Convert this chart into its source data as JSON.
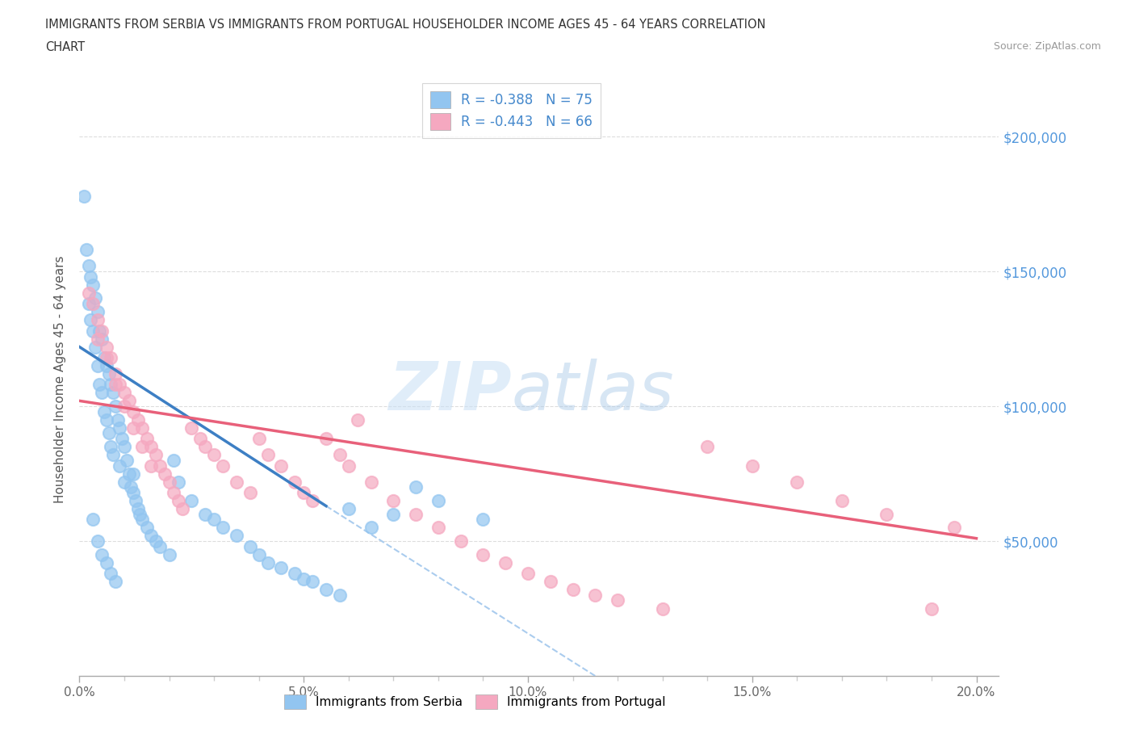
{
  "title_line1": "IMMIGRANTS FROM SERBIA VS IMMIGRANTS FROM PORTUGAL HOUSEHOLDER INCOME AGES 45 - 64 YEARS CORRELATION",
  "title_line2": "CHART",
  "source": "Source: ZipAtlas.com",
  "serbia_R": -0.388,
  "serbia_N": 75,
  "portugal_R": -0.443,
  "portugal_N": 66,
  "serbia_color": "#92C5F0",
  "portugal_color": "#F5A8C0",
  "serbia_line_color": "#3D7FC4",
  "portugal_line_color": "#E8607A",
  "dashed_line_color": "#AACCEE",
  "ylabel": "Householder Income Ages 45 - 64 years",
  "ytick_labels": [
    "$50,000",
    "$100,000",
    "$150,000",
    "$200,000"
  ],
  "ytick_values": [
    50000,
    100000,
    150000,
    200000
  ],
  "xlim": [
    0,
    20.5
  ],
  "ylim": [
    0,
    220000
  ],
  "watermark_zip": "ZIP",
  "watermark_atlas": "atlas",
  "legend_serbia": "Immigrants from Serbia",
  "legend_portugal": "Immigrants from Portugal",
  "serbia_line_x0": 0.0,
  "serbia_line_y0": 122000,
  "serbia_line_x1": 5.5,
  "serbia_line_y1": 63000,
  "portugal_line_x0": 0.0,
  "portugal_line_y0": 102000,
  "portugal_line_x1": 20.0,
  "portugal_line_y1": 51000,
  "dashed_line_x0": 5.5,
  "dashed_line_y0": 63000,
  "dashed_line_x1": 11.5,
  "dashed_line_y1": 0,
  "serbia_scatter_x": [
    0.1,
    0.15,
    0.2,
    0.2,
    0.25,
    0.25,
    0.3,
    0.3,
    0.35,
    0.35,
    0.4,
    0.4,
    0.45,
    0.45,
    0.5,
    0.5,
    0.55,
    0.55,
    0.6,
    0.6,
    0.65,
    0.65,
    0.7,
    0.7,
    0.75,
    0.75,
    0.8,
    0.85,
    0.9,
    0.9,
    0.95,
    1.0,
    1.0,
    1.05,
    1.1,
    1.15,
    1.2,
    1.25,
    1.3,
    1.35,
    1.4,
    1.5,
    1.6,
    1.7,
    1.8,
    2.0,
    2.1,
    2.2,
    2.5,
    2.8,
    3.0,
    3.2,
    3.5,
    3.8,
    4.0,
    4.2,
    4.5,
    4.8,
    5.0,
    5.2,
    5.5,
    5.8,
    6.0,
    6.5,
    7.0,
    7.5,
    8.0,
    9.0,
    0.3,
    0.4,
    0.5,
    0.6,
    0.7,
    0.8,
    1.2
  ],
  "serbia_scatter_y": [
    178000,
    158000,
    152000,
    138000,
    148000,
    132000,
    145000,
    128000,
    140000,
    122000,
    135000,
    115000,
    128000,
    108000,
    125000,
    105000,
    118000,
    98000,
    115000,
    95000,
    112000,
    90000,
    108000,
    85000,
    105000,
    82000,
    100000,
    95000,
    92000,
    78000,
    88000,
    85000,
    72000,
    80000,
    75000,
    70000,
    68000,
    65000,
    62000,
    60000,
    58000,
    55000,
    52000,
    50000,
    48000,
    45000,
    80000,
    72000,
    65000,
    60000,
    58000,
    55000,
    52000,
    48000,
    45000,
    42000,
    40000,
    38000,
    36000,
    35000,
    32000,
    30000,
    62000,
    55000,
    60000,
    70000,
    65000,
    58000,
    58000,
    50000,
    45000,
    42000,
    38000,
    35000,
    75000
  ],
  "portugal_scatter_x": [
    0.2,
    0.3,
    0.4,
    0.5,
    0.6,
    0.7,
    0.8,
    0.9,
    1.0,
    1.1,
    1.2,
    1.3,
    1.4,
    1.5,
    1.6,
    1.7,
    1.8,
    1.9,
    2.0,
    2.1,
    2.2,
    2.3,
    2.5,
    2.7,
    3.0,
    3.2,
    3.5,
    3.8,
    4.0,
    4.2,
    4.5,
    4.8,
    5.0,
    5.2,
    5.5,
    5.8,
    6.0,
    6.5,
    7.0,
    7.5,
    8.0,
    8.5,
    9.0,
    9.5,
    10.0,
    10.5,
    11.0,
    11.5,
    12.0,
    13.0,
    14.0,
    15.0,
    16.0,
    17.0,
    18.0,
    19.0,
    0.4,
    0.6,
    0.8,
    1.0,
    1.2,
    1.4,
    1.6,
    2.8,
    6.2,
    19.5
  ],
  "portugal_scatter_y": [
    142000,
    138000,
    132000,
    128000,
    122000,
    118000,
    112000,
    108000,
    105000,
    102000,
    98000,
    95000,
    92000,
    88000,
    85000,
    82000,
    78000,
    75000,
    72000,
    68000,
    65000,
    62000,
    92000,
    88000,
    82000,
    78000,
    72000,
    68000,
    88000,
    82000,
    78000,
    72000,
    68000,
    65000,
    88000,
    82000,
    78000,
    72000,
    65000,
    60000,
    55000,
    50000,
    45000,
    42000,
    38000,
    35000,
    32000,
    30000,
    28000,
    25000,
    85000,
    78000,
    72000,
    65000,
    60000,
    25000,
    125000,
    118000,
    108000,
    100000,
    92000,
    85000,
    78000,
    85000,
    95000,
    55000
  ]
}
